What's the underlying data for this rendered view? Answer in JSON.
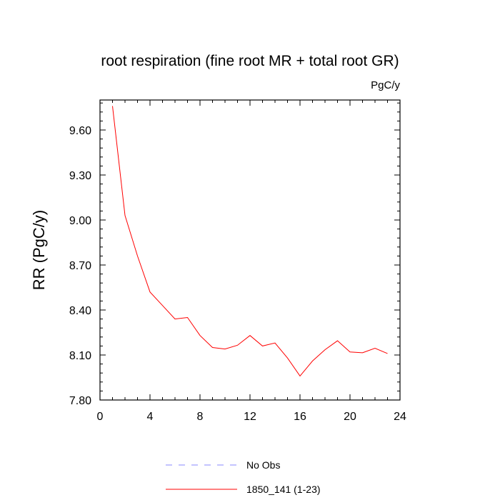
{
  "chart_data": {
    "type": "line",
    "title": "root respiration (fine root MR + total root GR)",
    "units": "PgC/y",
    "xlabel": "",
    "ylabel": "RR  (PgC/y)",
    "xlim": [
      0,
      24
    ],
    "ylim": [
      7.8,
      9.8
    ],
    "x_ticks": [
      0,
      4,
      8,
      12,
      16,
      20,
      24
    ],
    "x_tick_labels": [
      "0",
      "4",
      "8",
      "12",
      "16",
      "20",
      "24"
    ],
    "y_ticks": [
      7.8,
      8.1,
      8.4,
      8.7,
      9.0,
      9.3,
      9.6
    ],
    "y_tick_labels": [
      "7.80",
      "8.10",
      "8.40",
      "8.70",
      "9.00",
      "9.30",
      "9.60"
    ],
    "grid": false,
    "legend_position": "bottom",
    "series": [
      {
        "name": "1850_141 (1-23)",
        "color": "#ff0000",
        "style": "solid",
        "x": [
          1,
          2,
          3,
          4,
          5,
          6,
          7,
          8,
          9,
          10,
          11,
          12,
          13,
          14,
          15,
          16,
          17,
          18,
          19,
          20,
          21,
          22,
          23
        ],
        "y": [
          9.76,
          9.03,
          8.76,
          8.52,
          8.43,
          8.34,
          8.35,
          8.23,
          8.15,
          8.14,
          8.165,
          8.23,
          8.16,
          8.18,
          8.08,
          7.96,
          8.06,
          8.135,
          8.195,
          8.12,
          8.115,
          8.145,
          8.11
        ]
      }
    ],
    "legend": [
      {
        "label": "No Obs",
        "color": "#8888ff",
        "style": "dashed"
      },
      {
        "label": "1850_141 (1-23)",
        "color": "#ff0000",
        "style": "solid"
      }
    ]
  }
}
